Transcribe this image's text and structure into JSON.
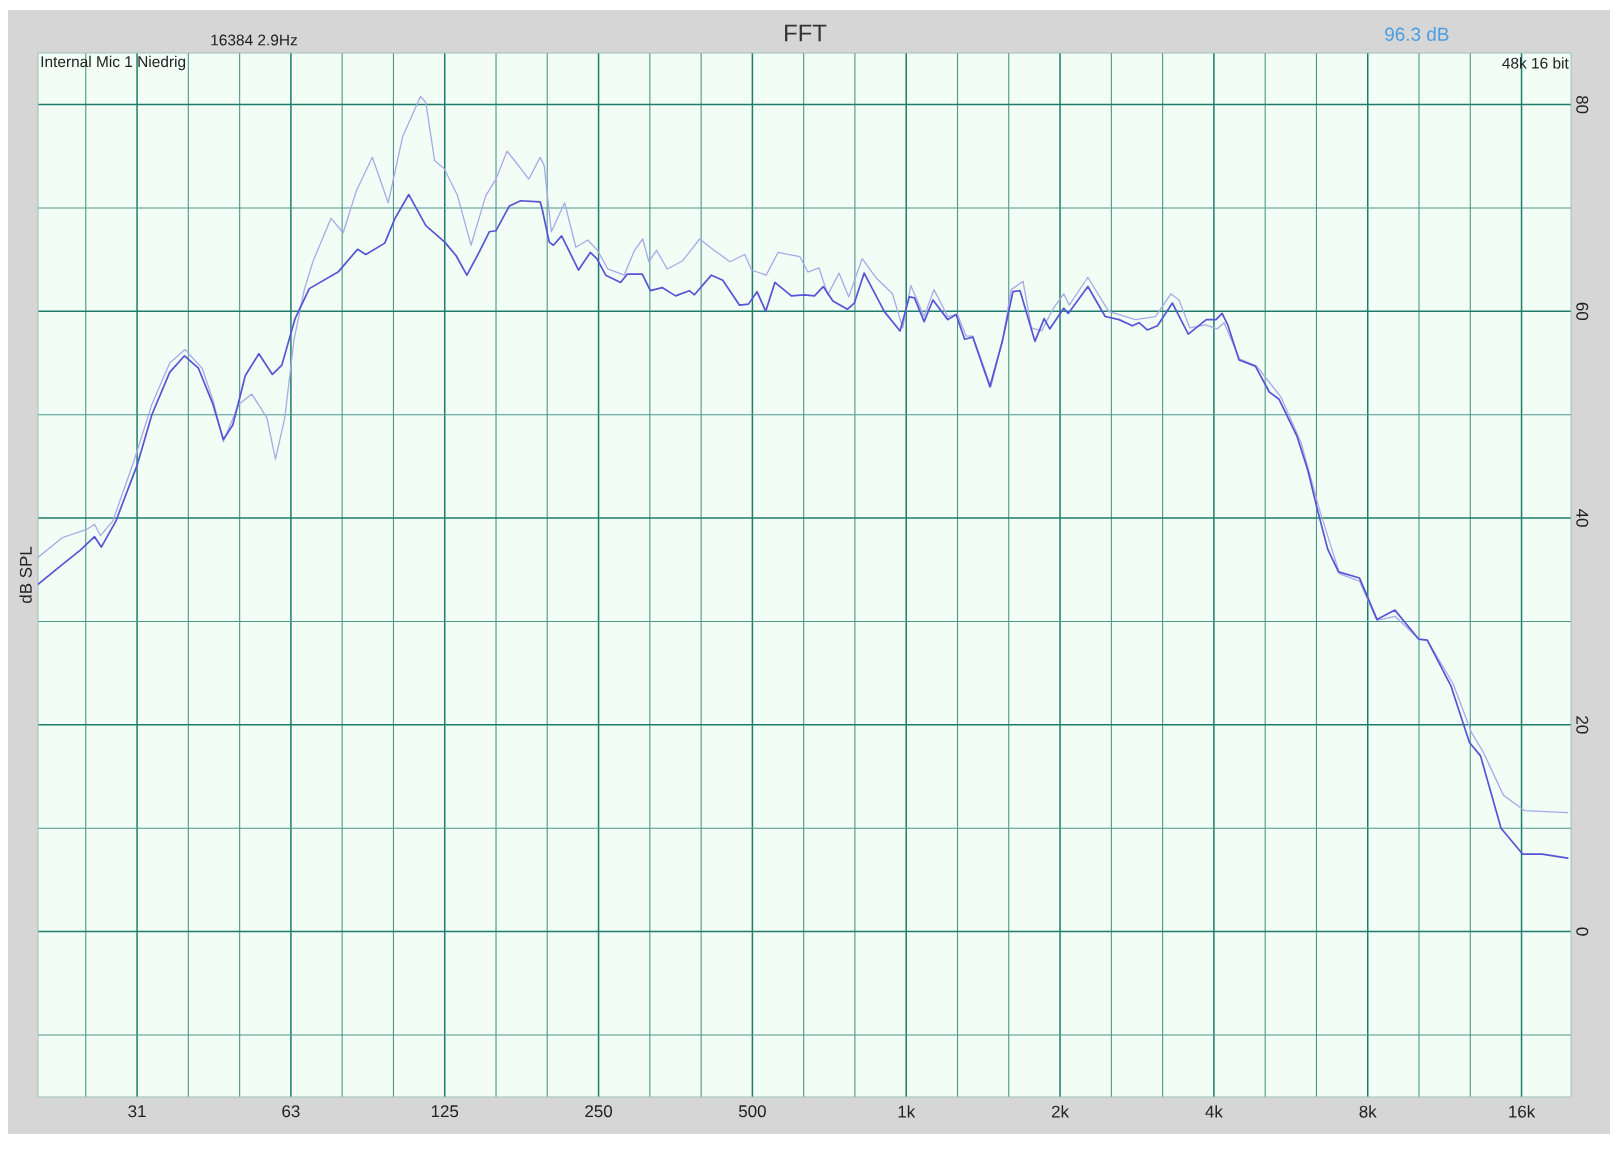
{
  "chart_data": {
    "type": "line",
    "title": "FFT",
    "subtitle": "16384 2.9Hz",
    "ylabel": "dB SPL",
    "annotations": [
      "96.3 dB",
      "Internal Mic 1 Niedrig",
      "48k 16 bit"
    ],
    "log": "x",
    "grid": true,
    "xlim": [
      20,
      20000
    ],
    "ylim": [
      -16,
      85
    ],
    "xticks": [
      {
        "value": 24.8,
        "label": null
      },
      {
        "value": 31.25,
        "label": "31"
      },
      {
        "value": 39.37,
        "label": null
      },
      {
        "value": 49.61,
        "label": null
      },
      {
        "value": 62.5,
        "label": "63"
      },
      {
        "value": 78.75,
        "label": null
      },
      {
        "value": 99.21,
        "label": null
      },
      {
        "value": 125,
        "label": "125"
      },
      {
        "value": 157.5,
        "label": null
      },
      {
        "value": 198.4,
        "label": null
      },
      {
        "value": 250,
        "label": "250"
      },
      {
        "value": 315,
        "label": null
      },
      {
        "value": 396.9,
        "label": null
      },
      {
        "value": 500,
        "label": "500"
      },
      {
        "value": 630,
        "label": null
      },
      {
        "value": 793.7,
        "label": null
      },
      {
        "value": 1000,
        "label": "1k"
      },
      {
        "value": 1260,
        "label": null
      },
      {
        "value": 1587,
        "label": null
      },
      {
        "value": 2000,
        "label": "2k"
      },
      {
        "value": 2520,
        "label": null
      },
      {
        "value": 3175,
        "label": null
      },
      {
        "value": 4000,
        "label": "4k"
      },
      {
        "value": 5040,
        "label": null
      },
      {
        "value": 6350,
        "label": null
      },
      {
        "value": 8000,
        "label": "8k"
      },
      {
        "value": 10079,
        "label": null
      },
      {
        "value": 12699,
        "label": null
      },
      {
        "value": 16000,
        "label": "16k"
      }
    ],
    "yticks": [
      {
        "value": -10,
        "label": null
      },
      0,
      {
        "value": 10,
        "label": null
      },
      20,
      {
        "value": 30,
        "label": null
      },
      40,
      {
        "value": 50,
        "label": null
      },
      60,
      {
        "value": 70,
        "label": null
      },
      80
    ],
    "series": [
      {
        "color": "#a9a9e6",
        "x": [
          20,
          22.3,
          24.9,
          25.8,
          26.5,
          28.0,
          30.8,
          33.4,
          36.2,
          38.8,
          41.9,
          44.0,
          46.1,
          49.4,
          52.4,
          56.1,
          58.3,
          60.8,
          63.4,
          66.4,
          69.0,
          74.9,
          79.1,
          84.0,
          90.2,
          96.9,
          103.4,
          112.1,
          114.8,
          119.4,
          124.7,
          132.4,
          140.7,
          150.4,
          157.5,
          165.5,
          172.4,
          182.6,
          192.2,
          195.7,
          202.1,
          214.6,
          225.7,
          238.1,
          248.8,
          260.6,
          280.6,
          293.9,
          305.1,
          313.6,
          324.6,
          340.8,
          365.3,
          394.2,
          415.7,
          451.7,
          483.2,
          497.9,
          532.1,
          561.2,
          618.9,
          641.8,
          675.2,
          702.3,
          738.7,
          772,
          819.9,
          874.8,
          939.9,
          984,
          1021,
          1084,
          1133,
          1206,
          1260,
          1310,
          1350,
          1464,
          1548,
          1605,
          1693,
          1757,
          1840,
          1941,
          2033,
          2085,
          2267,
          2489,
          2808,
          3074,
          3295,
          3419,
          3590,
          3857,
          4056,
          4189,
          4490,
          4848,
          5414,
          5925,
          6439,
          7048,
          7711,
          8340,
          9042,
          10079,
          10459,
          11748,
          12757,
          13455,
          14741,
          16224,
          19700
        ],
        "values": [
          36.2,
          38.1,
          38.9,
          39.4,
          38.3,
          39.7,
          45.5,
          51,
          55,
          56.3,
          54.5,
          51.4,
          47.4,
          51,
          52,
          49.7,
          45.7,
          49.7,
          57.3,
          62.1,
          64.8,
          69,
          67.6,
          71.7,
          74.9,
          70.5,
          76.9,
          80.8,
          80.2,
          74.6,
          73.8,
          71.2,
          66.4,
          71.2,
          72.8,
          75.5,
          74.4,
          72.8,
          74.9,
          74.1,
          67.7,
          70.5,
          66.2,
          66.9,
          65.9,
          64.1,
          63.5,
          65.9,
          67,
          64.8,
          65.9,
          64.1,
          64.9,
          67,
          66.1,
          64.8,
          65.5,
          64,
          63.5,
          65.7,
          65.3,
          63.8,
          64.2,
          61.6,
          63.7,
          61.4,
          65.1,
          63.2,
          61.7,
          58.4,
          62.5,
          59.5,
          62.1,
          59.5,
          59.7,
          57.6,
          57.6,
          52.7,
          57.5,
          62.1,
          62.9,
          58.4,
          58.1,
          60.3,
          61.7,
          60.6,
          63.3,
          60,
          59.2,
          59.5,
          61.7,
          61.1,
          58.4,
          58.7,
          58.3,
          58.9,
          55.4,
          54.7,
          51.7,
          47.3,
          40.8,
          34.6,
          33.9,
          30.1,
          30.5,
          28.3,
          28.2,
          24,
          19.3,
          17.4,
          13.2,
          11.7,
          11.5
        ]
      },
      {
        "color": "#5555d5",
        "x": [
          20,
          22.3,
          24.2,
          25.8,
          26.6,
          28.4,
          31.3,
          33.4,
          36.2,
          38.7,
          41.2,
          44.0,
          46.1,
          48.1,
          50.9,
          54.1,
          57.5,
          60.0,
          63.7,
          67.9,
          77.3,
          84.4,
          87.6,
          95.4,
          99.9,
          106.3,
          114.8,
          125,
          131.5,
          138.1,
          145.9,
          152.8,
          157.5,
          167.3,
          176.0,
          192.2,
          193.9,
          200.2,
          204.0,
          211.7,
          228.4,
          240.9,
          248,
          258.2,
          276.1,
          284.5,
          304.4,
          315.7,
          333.0,
          353.6,
          376.4,
          385.1,
          415.7,
          437.5,
          471.9,
          491.2,
          510.5,
          531,
          553.3,
          596,
          632.9,
          661.5,
          688,
          718.8,
          767,
          791.5,
          827.4,
          905.6,
          972.6,
          1014,
          1038,
          1084,
          1128,
          1206,
          1252,
          1301,
          1350,
          1458,
          1542,
          1617,
          1670,
          1786,
          1862,
          1909,
          2033,
          2075,
          2267,
          2451,
          2609,
          2770,
          2855,
          2963,
          3102,
          3318,
          3564,
          3866,
          4037,
          4151,
          4257,
          4480,
          4822,
          5134,
          5364,
          5819,
          6110,
          6379,
          6680,
          7014,
          7711,
          7974,
          8340,
          9042,
          10058,
          10459,
          11633,
          12653,
          13300,
          14587,
          16074,
          17549,
          19700
        ],
        "values": [
          33.6,
          35.5,
          36.9,
          38.2,
          37.2,
          39.7,
          45.2,
          50,
          54.1,
          55.7,
          54.5,
          51,
          47.6,
          49,
          53.8,
          55.9,
          53.9,
          54.8,
          59.3,
          62.2,
          63.8,
          66,
          65.5,
          66.6,
          69,
          71.3,
          68.3,
          66.7,
          65.4,
          63.5,
          65.7,
          67.7,
          67.8,
          70.2,
          70.7,
          70.6,
          69.9,
          66.7,
          66.4,
          67.3,
          64,
          65.7,
          65.1,
          63.5,
          62.8,
          63.6,
          63.6,
          62,
          62.3,
          61.5,
          62,
          61.6,
          63.5,
          63,
          60.6,
          60.7,
          61.9,
          60,
          62.8,
          61.5,
          61.6,
          61.5,
          62.4,
          61,
          60.2,
          60.8,
          63.7,
          60,
          58.1,
          61.4,
          61.3,
          59,
          61.1,
          59.2,
          59.7,
          57.3,
          57.5,
          52.7,
          57.1,
          61.9,
          62,
          57.1,
          59.3,
          58.3,
          60.3,
          59.8,
          62.4,
          59.5,
          59.2,
          58.6,
          58.9,
          58.2,
          58.6,
          60.8,
          57.8,
          59.2,
          59.2,
          59.8,
          58.7,
          55.3,
          54.7,
          52.2,
          51.5,
          47.9,
          44.6,
          40.8,
          37,
          34.8,
          34.2,
          32.5,
          30.2,
          31.1,
          28.3,
          28.2,
          23.8,
          18.3,
          17,
          10,
          7.5,
          7.5,
          7.1
        ]
      }
    ]
  }
}
